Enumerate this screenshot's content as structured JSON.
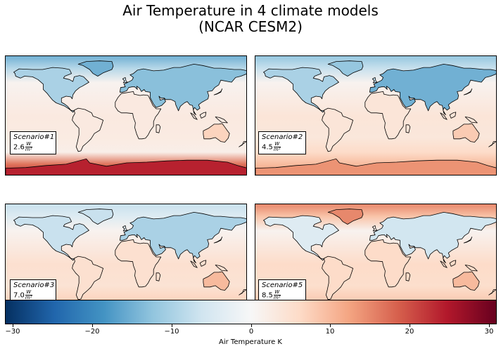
{
  "chart_data": {
    "type": "heatmap",
    "title": "Air Temperature in 4 climate models\n(NCAR CESM2)",
    "panels": [
      {
        "scenario": "Scenario#1",
        "forcing": "2.6",
        "unit_num": "W",
        "unit_den": "m²",
        "pattern": {
          "arctic": -15,
          "siberia": -13,
          "canada": -10,
          "europe": -6,
          "tropics": 3,
          "africa_south": 7,
          "southern_ocean": 2,
          "antarctic": 24
        }
      },
      {
        "scenario": "Scenario#2",
        "forcing": "4.5",
        "unit_num": "W",
        "unit_den": "m²",
        "pattern": {
          "arctic": -12,
          "siberia": -15,
          "canada": -10,
          "europe": -8,
          "tropics": 4,
          "africa_south": 8,
          "southern_ocean": 6,
          "antarctic": 14
        }
      },
      {
        "scenario": "Scenario#3",
        "forcing": "7.0",
        "unit_num": "W",
        "unit_den": "m²",
        "pattern": {
          "arctic": -7,
          "siberia": -10,
          "canada": -7,
          "europe": -4,
          "tropics": 5,
          "africa_south": 10,
          "southern_ocean": 7,
          "antarctic": 8
        }
      },
      {
        "scenario": "Scenario#5",
        "forcing": "8.5",
        "unit_num": "W",
        "unit_den": "m²",
        "pattern": {
          "arctic": 15,
          "siberia": -6,
          "canada": -4,
          "europe": 2,
          "tropics": 6,
          "africa_south": 10,
          "southern_ocean": 8,
          "antarctic": 4
        }
      }
    ],
    "colorbar": {
      "cmap": "RdBu_r",
      "range": [
        -31,
        31
      ],
      "ticks": [
        -30,
        -20,
        -10,
        0,
        10,
        20,
        30
      ],
      "tick_labels": [
        "−30",
        "−20",
        "−10",
        "0",
        "10",
        "20",
        "30"
      ],
      "label": "Air Temperature K"
    }
  }
}
